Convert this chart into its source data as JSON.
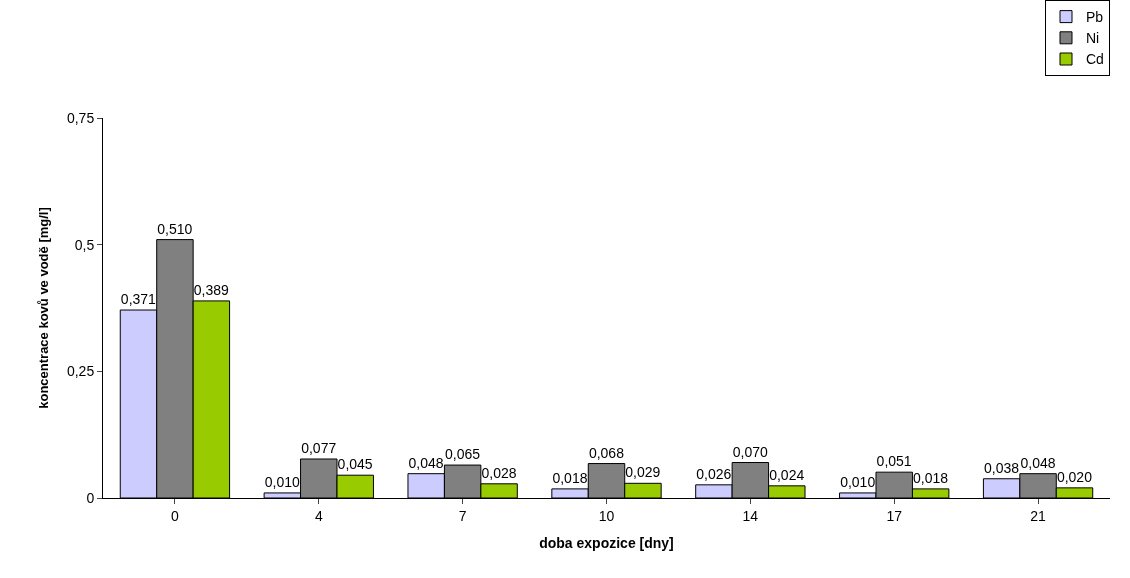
{
  "chart_data": {
    "type": "bar",
    "xlabel": "doba expozice [dny]",
    "ylabel": "koncentrace kovů ve vodě [mg/l]",
    "categories": [
      "0",
      "4",
      "7",
      "10",
      "14",
      "17",
      "21"
    ],
    "series": [
      {
        "name": "Pb",
        "color": "#ccccff",
        "values": [
          0.371,
          0.01,
          0.048,
          0.018,
          0.026,
          0.01,
          0.038
        ],
        "value_labels": [
          "0,371",
          "0,010",
          "0,048",
          "0,018",
          "0,026",
          "0,010",
          "0,038"
        ]
      },
      {
        "name": "Ni",
        "color": "#808080",
        "values": [
          0.51,
          0.077,
          0.065,
          0.068,
          0.07,
          0.051,
          0.048
        ],
        "value_labels": [
          "0,510",
          "0,077",
          "0,065",
          "0,068",
          "0,070",
          "0,051",
          "0,048"
        ]
      },
      {
        "name": "Cd",
        "color": "#99cc00",
        "values": [
          0.389,
          0.045,
          0.028,
          0.029,
          0.024,
          0.018,
          0.02
        ],
        "value_labels": [
          "0,389",
          "0,045",
          "0,028",
          "0,029",
          "0,024",
          "0,018",
          "0,020"
        ]
      }
    ],
    "ylim": [
      0,
      0.75
    ],
    "yticks": [
      0,
      {
        "value": 0.25,
        "label": "0,25"
      },
      {
        "value": 0.5,
        "label": "0,5"
      },
      {
        "value": 0.75,
        "label": "0,75"
      }
    ],
    "legend": "top right"
  }
}
